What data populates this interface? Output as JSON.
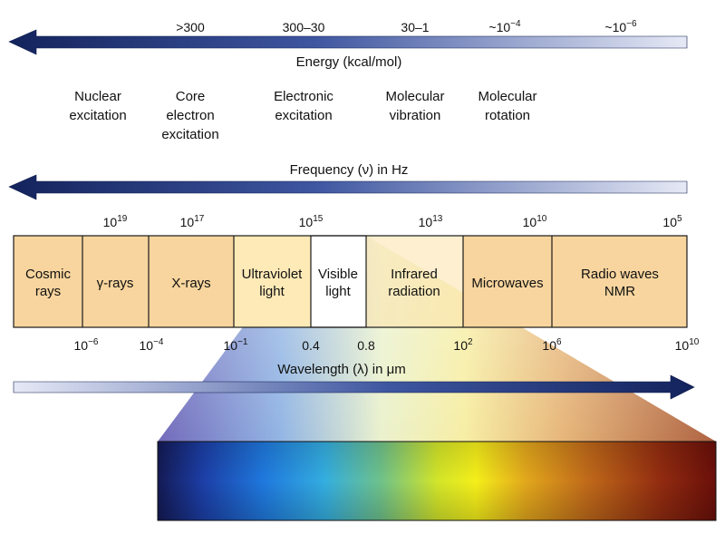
{
  "colors": {
    "arrow_dark": "#1b2f6e",
    "arrow_light": "#e2e6f3",
    "band_fill": "#f8d59e",
    "uv_fill": "#fdeab7",
    "visible_fill": "#ffffff",
    "border": "#1a1a1a"
  },
  "energy": {
    "label": "Energy (kcal/mol)",
    "ticks": [
      {
        "base": ">300",
        "sup": ""
      },
      {
        "base": "300–30",
        "sup": ""
      },
      {
        "base": "30–1",
        "sup": ""
      },
      {
        "base": "~10",
        "sup": "−4"
      },
      {
        "base": "~10",
        "sup": "−6"
      }
    ]
  },
  "processes": [
    [
      "Nuclear",
      "excitation"
    ],
    [
      "Core",
      "electron",
      "excitation"
    ],
    [
      "Electronic",
      "excitation"
    ],
    [
      "Molecular",
      "vibration"
    ],
    [
      "Molecular",
      "rotation"
    ]
  ],
  "frequency": {
    "label": "Frequency (ν) in Hz",
    "ticks": [
      {
        "base": "10",
        "sup": "19"
      },
      {
        "base": "10",
        "sup": "17"
      },
      {
        "base": "10",
        "sup": "15"
      },
      {
        "base": "10",
        "sup": "13"
      },
      {
        "base": "10",
        "sup": "10"
      },
      {
        "base": "10",
        "sup": "5"
      }
    ]
  },
  "bands": [
    [
      "Cosmic",
      "rays"
    ],
    [
      "γ-rays"
    ],
    [
      "X-rays"
    ],
    [
      "Ultraviolet",
      "light"
    ],
    [
      "Visible",
      "light"
    ],
    [
      "Infrared",
      "radiation"
    ],
    [
      "Microwaves"
    ],
    [
      "Radio waves",
      "NMR"
    ]
  ],
  "wavelength": {
    "label": "Wavelength (λ) in μm",
    "ticks": [
      {
        "base": "10",
        "sup": "−6"
      },
      {
        "base": "10",
        "sup": "−4"
      },
      {
        "base": "10",
        "sup": "−1"
      },
      {
        "base": "0.4",
        "sup": ""
      },
      {
        "base": "0.8",
        "sup": ""
      },
      {
        "base": "10",
        "sup": "2"
      },
      {
        "base": "10",
        "sup": "6"
      },
      {
        "base": "10",
        "sup": "10"
      }
    ]
  }
}
